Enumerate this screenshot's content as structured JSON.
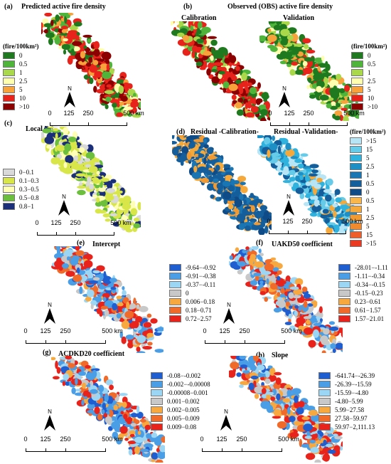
{
  "panels": {
    "a": {
      "label": "(a)",
      "title": "Predicted active fire density"
    },
    "b": {
      "label": "(b)",
      "title": "Observed (OBS) active fire density",
      "sub_left": "Calibration",
      "sub_right": "Validation"
    },
    "c": {
      "label": "(c)",
      "title": "Local R ²"
    },
    "d": {
      "label": "(d)",
      "title_left": "Residual -Calibration-",
      "title_right": "Residual -Validation-"
    },
    "e": {
      "label": "(e)",
      "title": "Intercept"
    },
    "f": {
      "label": "(f)",
      "title": "UAKD50 coefficient"
    },
    "g": {
      "label": "(g)",
      "title": "ACDKD20 coefficient"
    },
    "h": {
      "label": "(h)",
      "title": "Slope"
    }
  },
  "north_label": "N",
  "scale": {
    "t0": "0",
    "t1": "125",
    "t2": "250",
    "t3": "500 km"
  },
  "legends": {
    "fire": {
      "unit": "(fire/100km²)",
      "items": [
        {
          "label": "0",
          "color": "#1f7a1f"
        },
        {
          "label": "0.5",
          "color": "#4fb43a"
        },
        {
          "label": "1",
          "color": "#a9d84a"
        },
        {
          "label": "2.5",
          "color": "#ffffb0"
        },
        {
          "label": "5",
          "color": "#f7a23a"
        },
        {
          "label": "10",
          "color": "#e8231b"
        },
        {
          "label": ">10",
          "color": "#8b0000"
        }
      ]
    },
    "r2": {
      "items": [
        {
          "label": "0−0.1",
          "color": "#d9d9d9"
        },
        {
          "label": "0.1−0.3",
          "color": "#d8e64a"
        },
        {
          "label": "0.3−0.5",
          "color": "#ffffb5"
        },
        {
          "label": "0.5−0.8",
          "color": "#6cbf3c"
        },
        {
          "label": "0.8−1",
          "color": "#1a2e7a"
        }
      ]
    },
    "residual": {
      "unit": "(fire/100km²)",
      "items": [
        {
          "label": ">15",
          "color": "#b7e5f5"
        },
        {
          "label": "15",
          "color": "#66cbe8"
        },
        {
          "label": "5",
          "color": "#2fb2dd"
        },
        {
          "label": "2.5",
          "color": "#1e8fc4"
        },
        {
          "label": "1",
          "color": "#1a75b3"
        },
        {
          "label": "0.5",
          "color": "#155e9c"
        },
        {
          "label": "0",
          "color": "#0f4b87"
        },
        {
          "label": "0.5",
          "color": "#f9b64a"
        },
        {
          "label": "1",
          "color": "#f6a93b"
        },
        {
          "label": "2.5",
          "color": "#f29a32"
        },
        {
          "label": "5",
          "color": "#f08a2e"
        },
        {
          "label": "15",
          "color": "#ee5e2a"
        },
        {
          "label": ">15",
          "color": "#ea3a22"
        }
      ]
    },
    "intercept": {
      "items": [
        {
          "label": "-9.64−-0.92",
          "color": "#1f5ed1"
        },
        {
          "label": "-0.91−-0.38",
          "color": "#4a9ee6"
        },
        {
          "label": "-0.37−-0.11",
          "color": "#9bd6f4"
        },
        {
          "label": "0",
          "color": "#c8c8c8"
        },
        {
          "label": "0.006−0.18",
          "color": "#f7a93f"
        },
        {
          "label": "0.18−0.71",
          "color": "#f06a2a"
        },
        {
          "label": "0.72−2.57",
          "color": "#e8231b"
        }
      ]
    },
    "uakd": {
      "items": [
        {
          "label": "-28.01−-1.11",
          "color": "#1f5ed1"
        },
        {
          "label": "-1.11−-0.34",
          "color": "#4a9ee6"
        },
        {
          "label": "-0.34−-0.15",
          "color": "#9bd6f4"
        },
        {
          "label": "-0.15−0.23",
          "color": "#c8c8c8"
        },
        {
          "label": "0.23−0.61",
          "color": "#f7a93f"
        },
        {
          "label": "0.61−1.57",
          "color": "#f06a2a"
        },
        {
          "label": "1.57−21.01",
          "color": "#e8231b"
        }
      ]
    },
    "acdkd": {
      "items": [
        {
          "label": "-0.08−-0.002",
          "color": "#1f5ed1"
        },
        {
          "label": "-0.002−-0.00008",
          "color": "#4a9ee6"
        },
        {
          "label": "-0.00008−0.001",
          "color": "#9bd6f4"
        },
        {
          "label": "0.001−0.002",
          "color": "#c8c8c8"
        },
        {
          "label": "0.002−0.005",
          "color": "#f7a93f"
        },
        {
          "label": "0.005−0.009",
          "color": "#f06a2a"
        },
        {
          "label": "0.009−0.08",
          "color": "#e8231b"
        }
      ]
    },
    "slope": {
      "items": [
        {
          "label": "-641.74−-26.39",
          "color": "#1f5ed1"
        },
        {
          "label": "-26.39−-15.59",
          "color": "#4a9ee6"
        },
        {
          "label": "-15.59−-4.80",
          "color": "#9bd6f4"
        },
        {
          "label": "-4.80−5.99",
          "color": "#c8c8c8"
        },
        {
          "label": "5.99−27.58",
          "color": "#f7a93f"
        },
        {
          "label": "27.58−59.97",
          "color": "#f06a2a"
        },
        {
          "label": "59.97−2,111.13",
          "color": "#e8231b"
        }
      ]
    }
  }
}
